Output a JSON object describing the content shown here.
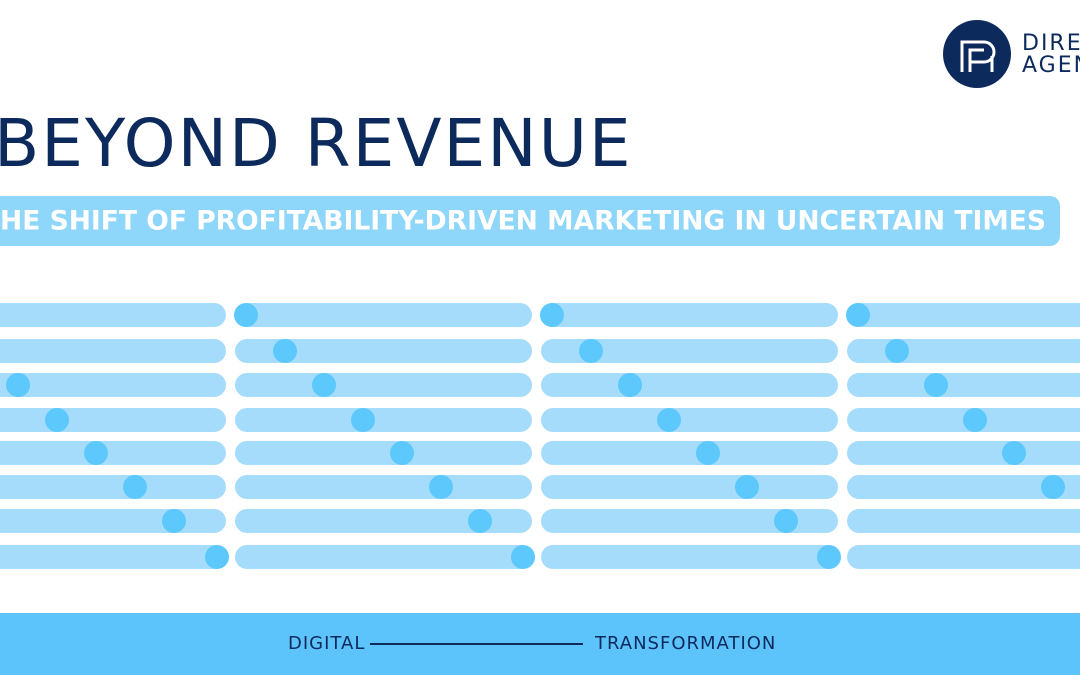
{
  "logo": {
    "line1": "DIRE",
    "line2": "AGEN"
  },
  "title": "BEYOND REVENUE",
  "subtitle": "HE SHIFT OF PROFITABILITY-DRIVEN MARKETING IN UNCERTAIN TIMES",
  "footer": {
    "left": "DIGITAL",
    "right": "TRANSFORMATION"
  }
}
